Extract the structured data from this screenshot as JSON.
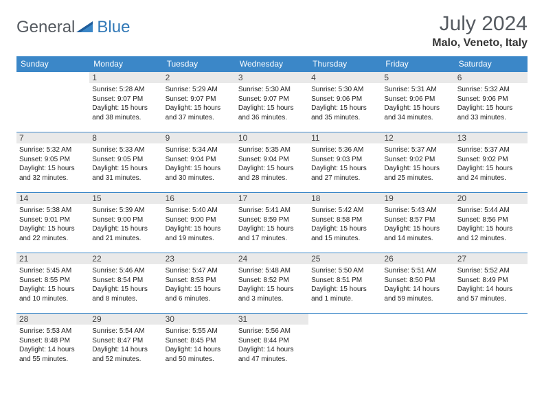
{
  "logo": {
    "word1": "General",
    "word2": "Blue"
  },
  "colors": {
    "header_bg": "#3b87c8",
    "header_text": "#ffffff",
    "daynum_bg": "#e9e9e9",
    "border": "#3b87c8",
    "logo_gray": "#555a60",
    "logo_blue": "#3279b7"
  },
  "title": "July 2024",
  "location": "Malo, Veneto, Italy",
  "weekdays": [
    "Sunday",
    "Monday",
    "Tuesday",
    "Wednesday",
    "Thursday",
    "Friday",
    "Saturday"
  ],
  "weeks": [
    [
      null,
      {
        "n": "1",
        "sr": "5:28 AM",
        "ss": "9:07 PM",
        "d": "15 hours and 38 minutes."
      },
      {
        "n": "2",
        "sr": "5:29 AM",
        "ss": "9:07 PM",
        "d": "15 hours and 37 minutes."
      },
      {
        "n": "3",
        "sr": "5:30 AM",
        "ss": "9:07 PM",
        "d": "15 hours and 36 minutes."
      },
      {
        "n": "4",
        "sr": "5:30 AM",
        "ss": "9:06 PM",
        "d": "15 hours and 35 minutes."
      },
      {
        "n": "5",
        "sr": "5:31 AM",
        "ss": "9:06 PM",
        "d": "15 hours and 34 minutes."
      },
      {
        "n": "6",
        "sr": "5:32 AM",
        "ss": "9:06 PM",
        "d": "15 hours and 33 minutes."
      }
    ],
    [
      {
        "n": "7",
        "sr": "5:32 AM",
        "ss": "9:05 PM",
        "d": "15 hours and 32 minutes."
      },
      {
        "n": "8",
        "sr": "5:33 AM",
        "ss": "9:05 PM",
        "d": "15 hours and 31 minutes."
      },
      {
        "n": "9",
        "sr": "5:34 AM",
        "ss": "9:04 PM",
        "d": "15 hours and 30 minutes."
      },
      {
        "n": "10",
        "sr": "5:35 AM",
        "ss": "9:04 PM",
        "d": "15 hours and 28 minutes."
      },
      {
        "n": "11",
        "sr": "5:36 AM",
        "ss": "9:03 PM",
        "d": "15 hours and 27 minutes."
      },
      {
        "n": "12",
        "sr": "5:37 AM",
        "ss": "9:02 PM",
        "d": "15 hours and 25 minutes."
      },
      {
        "n": "13",
        "sr": "5:37 AM",
        "ss": "9:02 PM",
        "d": "15 hours and 24 minutes."
      }
    ],
    [
      {
        "n": "14",
        "sr": "5:38 AM",
        "ss": "9:01 PM",
        "d": "15 hours and 22 minutes."
      },
      {
        "n": "15",
        "sr": "5:39 AM",
        "ss": "9:00 PM",
        "d": "15 hours and 21 minutes."
      },
      {
        "n": "16",
        "sr": "5:40 AM",
        "ss": "9:00 PM",
        "d": "15 hours and 19 minutes."
      },
      {
        "n": "17",
        "sr": "5:41 AM",
        "ss": "8:59 PM",
        "d": "15 hours and 17 minutes."
      },
      {
        "n": "18",
        "sr": "5:42 AM",
        "ss": "8:58 PM",
        "d": "15 hours and 15 minutes."
      },
      {
        "n": "19",
        "sr": "5:43 AM",
        "ss": "8:57 PM",
        "d": "15 hours and 14 minutes."
      },
      {
        "n": "20",
        "sr": "5:44 AM",
        "ss": "8:56 PM",
        "d": "15 hours and 12 minutes."
      }
    ],
    [
      {
        "n": "21",
        "sr": "5:45 AM",
        "ss": "8:55 PM",
        "d": "15 hours and 10 minutes."
      },
      {
        "n": "22",
        "sr": "5:46 AM",
        "ss": "8:54 PM",
        "d": "15 hours and 8 minutes."
      },
      {
        "n": "23",
        "sr": "5:47 AM",
        "ss": "8:53 PM",
        "d": "15 hours and 6 minutes."
      },
      {
        "n": "24",
        "sr": "5:48 AM",
        "ss": "8:52 PM",
        "d": "15 hours and 3 minutes."
      },
      {
        "n": "25",
        "sr": "5:50 AM",
        "ss": "8:51 PM",
        "d": "15 hours and 1 minute."
      },
      {
        "n": "26",
        "sr": "5:51 AM",
        "ss": "8:50 PM",
        "d": "14 hours and 59 minutes."
      },
      {
        "n": "27",
        "sr": "5:52 AM",
        "ss": "8:49 PM",
        "d": "14 hours and 57 minutes."
      }
    ],
    [
      {
        "n": "28",
        "sr": "5:53 AM",
        "ss": "8:48 PM",
        "d": "14 hours and 55 minutes."
      },
      {
        "n": "29",
        "sr": "5:54 AM",
        "ss": "8:47 PM",
        "d": "14 hours and 52 minutes."
      },
      {
        "n": "30",
        "sr": "5:55 AM",
        "ss": "8:45 PM",
        "d": "14 hours and 50 minutes."
      },
      {
        "n": "31",
        "sr": "5:56 AM",
        "ss": "8:44 PM",
        "d": "14 hours and 47 minutes."
      },
      null,
      null,
      null
    ]
  ],
  "labels": {
    "sunrise": "Sunrise:",
    "sunset": "Sunset:",
    "daylight": "Daylight:"
  }
}
